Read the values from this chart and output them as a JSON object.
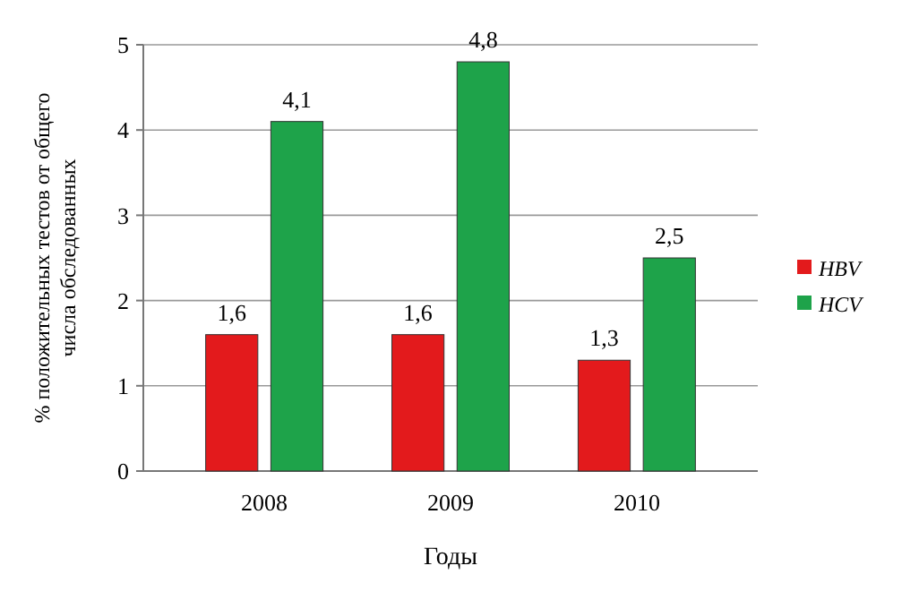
{
  "chart_data": {
    "type": "bar",
    "xlabel": "Годы",
    "ylabel": "% положительных тестов от общего числа обследованных",
    "categories": [
      "2008",
      "2009",
      "2010"
    ],
    "series": [
      {
        "name": "HBV",
        "color": "#e31a1c",
        "values": [
          1.6,
          1.6,
          1.3
        ],
        "value_labels": [
          "1,6",
          "1,6",
          "1,3"
        ]
      },
      {
        "name": "HCV",
        "color": "#1ea34a",
        "values": [
          4.1,
          4.8,
          2.5
        ],
        "value_labels": [
          "4,1",
          "4,8",
          "2,5"
        ]
      }
    ],
    "ylim": [
      0,
      5
    ],
    "yticks": [
      0,
      1,
      2,
      3,
      4,
      5
    ],
    "grid": "y",
    "legend": "right"
  }
}
